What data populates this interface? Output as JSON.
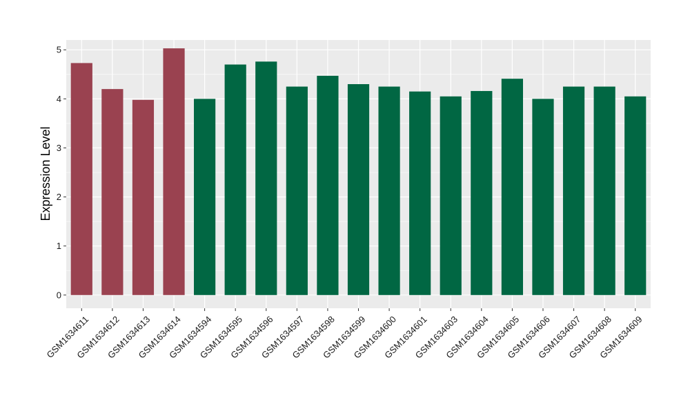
{
  "chart_data": {
    "type": "bar",
    "title": "",
    "xlabel": "",
    "ylabel": "Expression Level",
    "ylim": [
      -0.27,
      5.2
    ],
    "yticks": [
      0,
      1,
      2,
      3,
      4,
      5
    ],
    "grid": true,
    "legend": "none",
    "categories": [
      "GSM1634611",
      "GSM1634612",
      "GSM1634613",
      "GSM1634614",
      "GSM1634594",
      "GSM1634595",
      "GSM1634596",
      "GSM1634597",
      "GSM1634598",
      "GSM1634599",
      "GSM1634600",
      "GSM1634601",
      "GSM1634603",
      "GSM1634604",
      "GSM1634605",
      "GSM1634606",
      "GSM1634607",
      "GSM1634608",
      "GSM1634609"
    ],
    "values": [
      4.73,
      4.2,
      3.98,
      5.03,
      4.0,
      4.7,
      4.76,
      4.25,
      4.47,
      4.3,
      4.25,
      4.15,
      4.05,
      4.16,
      4.41,
      4.0,
      4.25,
      4.25,
      4.05
    ],
    "groups": [
      "group-1",
      "group-1",
      "group-1",
      "group-1",
      "group-2",
      "group-2",
      "group-2",
      "group-2",
      "group-2",
      "group-2",
      "group-2",
      "group-2",
      "group-2",
      "group-2",
      "group-2",
      "group-2",
      "group-2",
      "group-2",
      "group-2"
    ],
    "colors": {
      "group-1": "#9A4250",
      "group-2": "#016743",
      "panel_background": "#EBEBEB",
      "gridline": "#FFFFFF"
    }
  }
}
